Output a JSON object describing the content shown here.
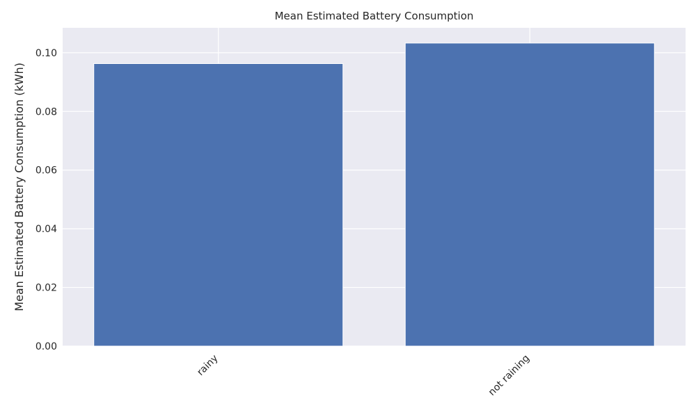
{
  "chart_data": {
    "type": "bar",
    "title": "Mean Estimated Battery Consumption",
    "xlabel": "",
    "ylabel": "Mean Estimated Battery Consumption (kWh)",
    "categories": [
      "rainy",
      "not raining"
    ],
    "values": [
      0.0963,
      0.1033
    ],
    "ylim": [
      0,
      0.1085
    ],
    "yticks": [
      0.0,
      0.02,
      0.04,
      0.06,
      0.08,
      0.1
    ],
    "ytick_labels": [
      "0.00",
      "0.02",
      "0.04",
      "0.06",
      "0.08",
      "0.10"
    ],
    "grid": true,
    "bar_color": "#4c72b0",
    "background_color": "#eaeaf2",
    "grid_color": "#ffffff"
  }
}
